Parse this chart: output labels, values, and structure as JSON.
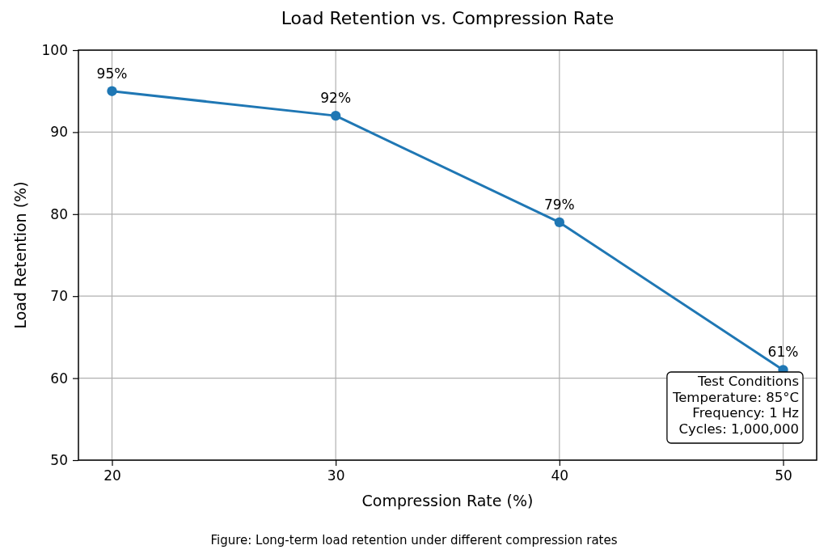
{
  "chart_data": {
    "type": "line",
    "title": "Load Retention vs. Compression Rate",
    "xlabel": "Compression Rate (%)",
    "ylabel": "Load Retention (%)",
    "x": [
      20,
      30,
      40,
      50
    ],
    "series": [
      {
        "color": "#1f77b4",
        "values": [
          95,
          92,
          79,
          61
        ],
        "value_labels": [
          "95%",
          "92%",
          "79%",
          "61%"
        ]
      }
    ],
    "xlim": [
      18.5,
      51.5
    ],
    "xticks": [
      20,
      30,
      40,
      50
    ],
    "ylim": [
      50,
      100
    ],
    "yticks": [
      50,
      60,
      70,
      80,
      90,
      100
    ],
    "grid": true,
    "marker": "circle",
    "line_style": "solid",
    "annotations": [
      "Test Conditions\nTemperature: 85°C\nFrequency: 1 Hz\nCycles: 1,000,000",
      "Figure: Long-term load retention under different compression rates"
    ]
  }
}
